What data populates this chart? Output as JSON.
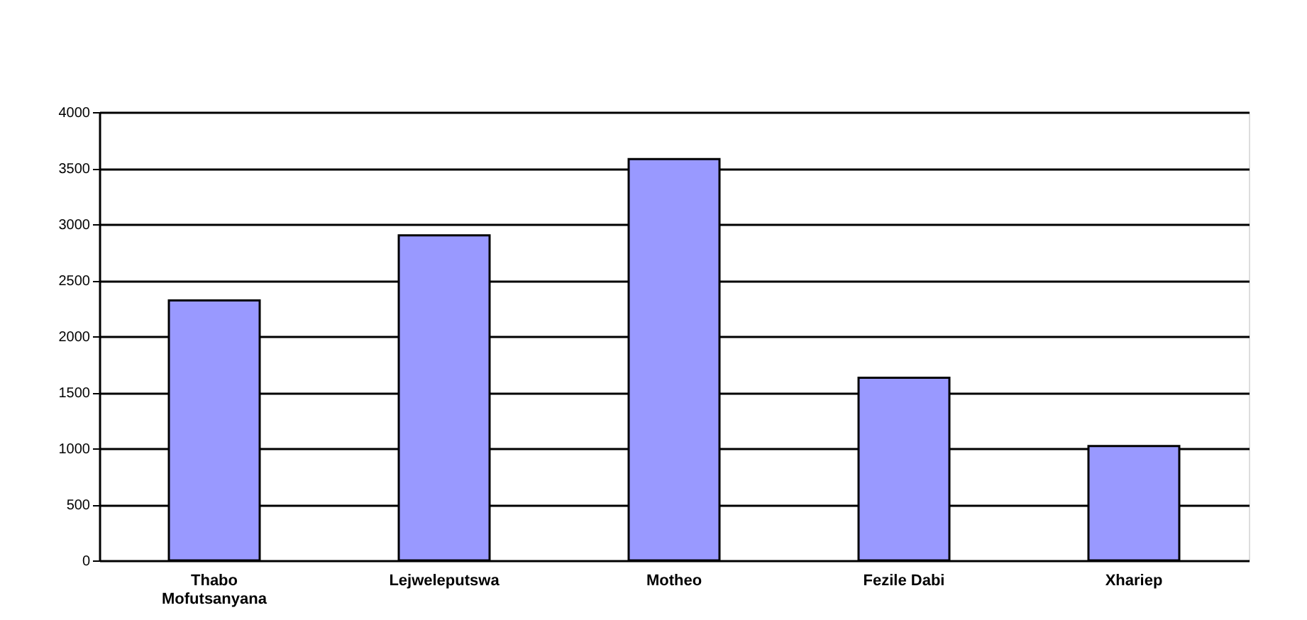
{
  "chart_data": {
    "type": "bar",
    "categories": [
      "Thabo Mofutsanyana",
      "Lejweleputswa",
      "Motheo",
      "Fezile Dabi",
      "Xhariep"
    ],
    "values": [
      2320,
      2900,
      3580,
      1630,
      1020
    ],
    "color": "#9999ff",
    "ylim": [
      0,
      4000
    ],
    "yticks": [
      0,
      500,
      1000,
      1500,
      2000,
      2500,
      3000,
      3500,
      4000
    ],
    "grid": "y"
  }
}
